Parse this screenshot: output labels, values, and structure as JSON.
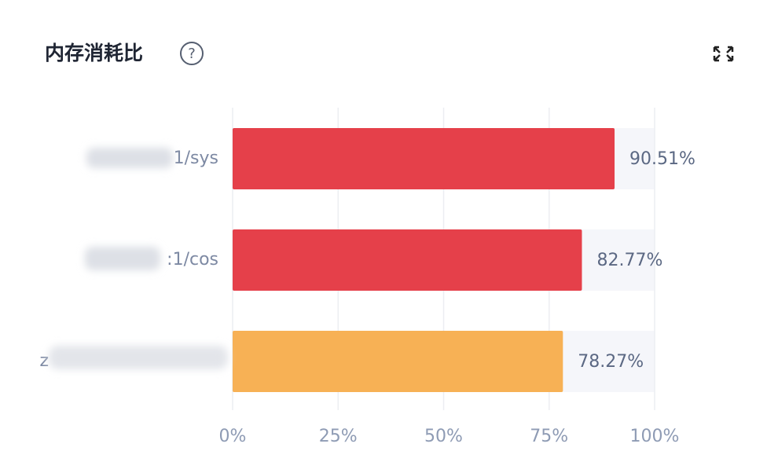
{
  "chart_data": {
    "type": "hbar",
    "title": "内存消耗比",
    "categories": [
      "1/sys",
      ":1/cos",
      "z"
    ],
    "values": [
      90.51,
      82.77,
      78.27
    ],
    "value_labels": [
      "90.51%",
      "82.77%",
      "78.27%"
    ],
    "colors": [
      "#e5404a",
      "#e5404a",
      "#f7b155"
    ],
    "xlim": [
      0,
      100
    ],
    "xticks": [
      {
        "value": 0,
        "label": "0%"
      },
      {
        "value": 25,
        "label": "25%"
      },
      {
        "value": 50,
        "label": "50%"
      },
      {
        "value": 75,
        "label": "75%"
      },
      {
        "value": 100,
        "label": "100%"
      }
    ],
    "grid": true
  }
}
